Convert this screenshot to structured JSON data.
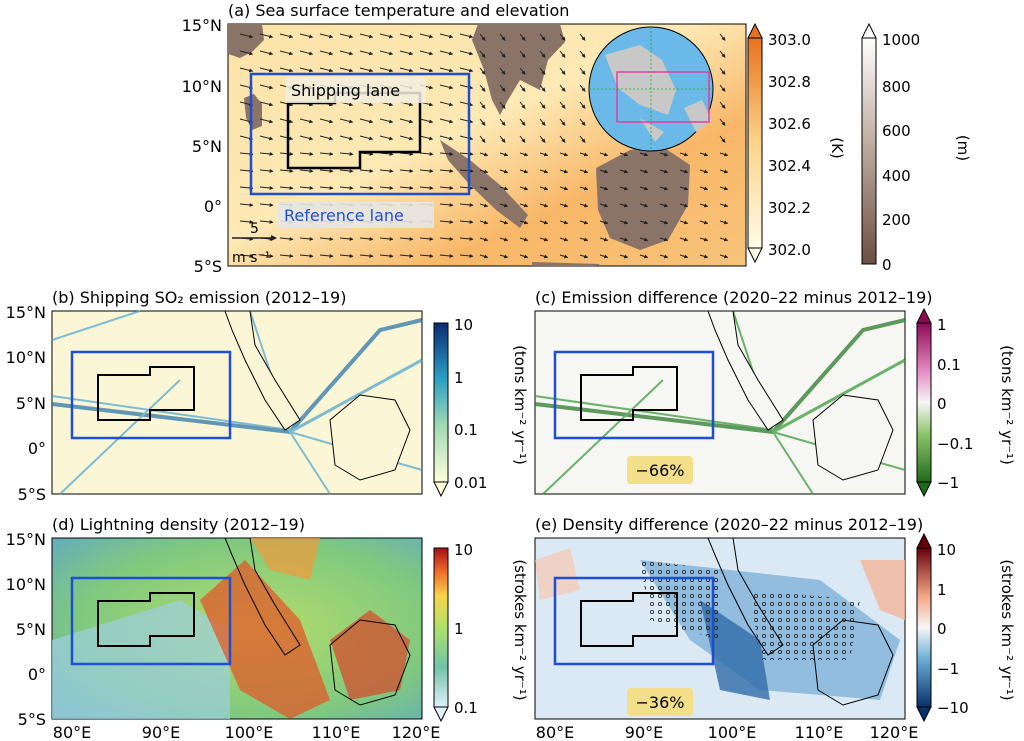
{
  "panels": {
    "a": {
      "title": "(a) Sea surface temperature and elevation",
      "lat_labels": [
        "15°N",
        "10°N",
        "5°N",
        "0°",
        "5°S"
      ],
      "shipping_label": "Shipping lane",
      "reference_label": "Reference lane",
      "wind_key_value": "5",
      "wind_key_unit": "m s⁻¹",
      "cbar_sst": {
        "ticks": [
          "303.0",
          "302.8",
          "302.6",
          "302.4",
          "302.2",
          "302.0"
        ],
        "unit": "(K)"
      },
      "cbar_elev": {
        "ticks": [
          "1000",
          "800",
          "600",
          "400",
          "200",
          "0"
        ],
        "unit": "(m)"
      }
    },
    "b": {
      "title": "(b) Shipping SO₂ emission (2012–19)",
      "lat_labels": [
        "15°N",
        "10°N",
        "5°N",
        "0°",
        "5°S"
      ],
      "cbar": {
        "ticks": [
          "10",
          "1",
          "0.1",
          "0.01"
        ],
        "unit": "(tons km⁻² yr⁻¹)"
      }
    },
    "c": {
      "title": "(c) Emission difference (2020–22 minus 2012–19)",
      "badge": "−66%",
      "cbar": {
        "ticks": [
          "1",
          "0.1",
          "0",
          "−0.1",
          "−1"
        ],
        "unit": "(tons km⁻² yr⁻¹)"
      }
    },
    "d": {
      "title": "(d) Lightning density (2012–19)",
      "lat_labels": [
        "15°N",
        "10°N",
        "5°N",
        "0°",
        "5°S"
      ],
      "lon_labels": [
        "80°E",
        "90°E",
        "100°E",
        "110°E",
        "120°E"
      ],
      "cbar": {
        "ticks": [
          "10",
          "1",
          "0.1"
        ],
        "unit": "(strokes km⁻² yr⁻¹)"
      }
    },
    "e": {
      "title": "(e) Density difference (2020–22 minus 2012–19)",
      "badge": "−36%",
      "lon_labels": [
        "80°E",
        "90°E",
        "100°E",
        "110°E",
        "120°E"
      ],
      "cbar": {
        "ticks": [
          "10",
          "1",
          "0",
          "−1",
          "−10"
        ],
        "unit": "(strokes km⁻² yr⁻¹)"
      }
    }
  },
  "colors": {
    "land": "#8a7468",
    "sea_warm": "#f4a460",
    "reference_box": "#1f4fd1",
    "shipping_box": "#000000",
    "shipping_cmap": "#2b8cbe",
    "diff_green": "#2e8b2e",
    "badge_bg": "#f3df8a"
  }
}
